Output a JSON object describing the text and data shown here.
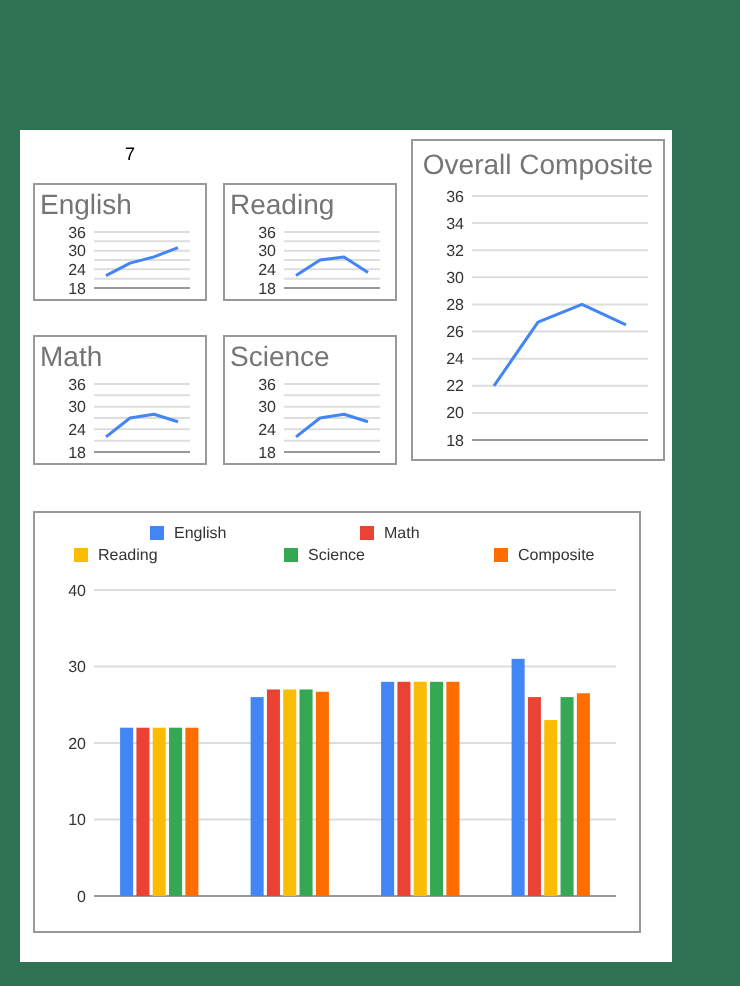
{
  "chart_data": [
    {
      "type": "other",
      "annotations": [
        "7"
      ]
    },
    {
      "type": "line",
      "title": "English",
      "categories": [
        null,
        null,
        null,
        null
      ],
      "series": [
        {
          "color": "#4285f4",
          "values": [
            22,
            26,
            28,
            31
          ]
        }
      ],
      "ylim": [
        18,
        36
      ],
      "yticks": [
        18,
        {
          "value": 21,
          "label": null
        },
        24,
        {
          "value": 27,
          "label": null
        },
        30,
        {
          "value": 33,
          "label": null
        },
        36
      ],
      "grid": "y",
      "marker": "none",
      "line_style": "solid"
    },
    {
      "type": "line",
      "title": "Reading",
      "categories": [
        null,
        null,
        null,
        null
      ],
      "series": [
        {
          "color": "#4285f4",
          "values": [
            22,
            27,
            28,
            23
          ]
        }
      ],
      "ylim": [
        18,
        36
      ],
      "yticks": [
        18,
        {
          "value": 21,
          "label": null
        },
        24,
        {
          "value": 27,
          "label": null
        },
        30,
        {
          "value": 33,
          "label": null
        },
        36
      ],
      "grid": "y",
      "marker": "none",
      "line_style": "solid"
    },
    {
      "type": "line",
      "title": "Overall Composite",
      "categories": [
        null,
        null,
        null,
        null
      ],
      "series": [
        {
          "color": "#4285f4",
          "values": [
            22,
            26.7,
            28,
            26.5
          ]
        }
      ],
      "ylim": [
        18,
        36
      ],
      "yticks": [
        18,
        20,
        22,
        24,
        26,
        28,
        30,
        32,
        34,
        36
      ],
      "grid": "y",
      "marker": "none",
      "line_style": "solid"
    },
    {
      "type": "line",
      "title": "Math",
      "categories": [
        null,
        null,
        null,
        null
      ],
      "series": [
        {
          "color": "#4285f4",
          "values": [
            22,
            27,
            28,
            26
          ]
        }
      ],
      "ylim": [
        18,
        36
      ],
      "yticks": [
        18,
        {
          "value": 21,
          "label": null
        },
        24,
        {
          "value": 27,
          "label": null
        },
        30,
        {
          "value": 33,
          "label": null
        },
        36
      ],
      "grid": "y",
      "marker": "none",
      "line_style": "solid"
    },
    {
      "type": "line",
      "title": "Science",
      "categories": [
        null,
        null,
        null,
        null
      ],
      "series": [
        {
          "color": "#4285f4",
          "values": [
            22,
            27,
            28,
            26
          ]
        }
      ],
      "ylim": [
        18,
        36
      ],
      "yticks": [
        18,
        {
          "value": 21,
          "label": null
        },
        24,
        {
          "value": 27,
          "label": null
        },
        30,
        {
          "value": 33,
          "label": null
        },
        36
      ],
      "grid": "y",
      "marker": "none",
      "line_style": "solid"
    },
    {
      "type": "bar",
      "categories": [
        null,
        null,
        null,
        null
      ],
      "series": [
        {
          "name": "English",
          "color": "#4285f4",
          "values": [
            22,
            26,
            28,
            31
          ]
        },
        {
          "name": "Math",
          "color": "#ea4335",
          "values": [
            22,
            27,
            28,
            26
          ]
        },
        {
          "name": "Reading",
          "color": "#fbbc04",
          "values": [
            22,
            27,
            28,
            23
          ]
        },
        {
          "name": "Science",
          "color": "#34a853",
          "values": [
            22,
            27,
            28,
            26
          ]
        },
        {
          "name": "Composite",
          "color": "#ff6d01",
          "values": [
            22,
            26.7,
            28,
            26.5
          ]
        }
      ],
      "ylim": [
        0,
        40
      ],
      "yticks": [
        0,
        10,
        20,
        30,
        40
      ],
      "grid": "y",
      "legend": "top"
    }
  ]
}
